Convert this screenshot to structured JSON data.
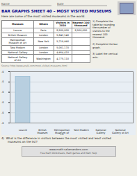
{
  "chart_data": {
    "type": "bar",
    "title": "BAR GRAPHS SHEET 40 – MOST VISITED MUSEUMS",
    "subtitle": "Here are some of the most visited museums in the world.",
    "categories": [
      "Louvre",
      "British\nMuseum",
      "Metropolitan\nMuseum of\nArt",
      "Tate Modern",
      "National\nGallery",
      "National\nGallery of Art"
    ],
    "values": [
      8.5,
      null,
      null,
      null,
      null,
      null
    ],
    "color": "#b8cfe0",
    "ylim": [
      4,
      9
    ],
    "yticks": [
      4,
      5,
      6,
      7,
      8,
      9
    ],
    "grid": true,
    "table": {
      "columns": [
        "Museum",
        "Where",
        "Visitors in\n2010",
        "Nearest 100\nthousand"
      ],
      "rows": [
        [
          "Louvre",
          "Paris",
          "8,500,000",
          "8,500,000"
        ],
        [
          "British Museum",
          "London",
          "5,842,140",
          null
        ],
        [
          "Metropolitan\nMuseum of Art",
          "New York",
          "5,216,990",
          null
        ],
        [
          "Tate Modern",
          "London",
          "5,061,170",
          null
        ],
        [
          "National Gallery",
          "London",
          "4,954,410",
          null
        ],
        [
          "National Gallery\nof Art",
          "Washington",
          "4,775,110",
          null
        ]
      ]
    },
    "annotations": {
      "name": "Name",
      "date": "Date",
      "instructions": [
        "1)  Complete the\ntable by rounding\nthe number of\nvisitors to the\nnearest 100\nthousand.",
        "2)  Complete the bar\ngraph.",
        "3)  Label the vertical\naxis."
      ],
      "source": "Source: http://www.aneki.com/most_visited_museums.html",
      "question": "4)  What is the difference in visitors between the most visited and least visited\n       museums on the list?",
      "footer": [
        "www.math-salamanders.com",
        "Free Math Worksheets, Math games and Math Help"
      ]
    }
  }
}
